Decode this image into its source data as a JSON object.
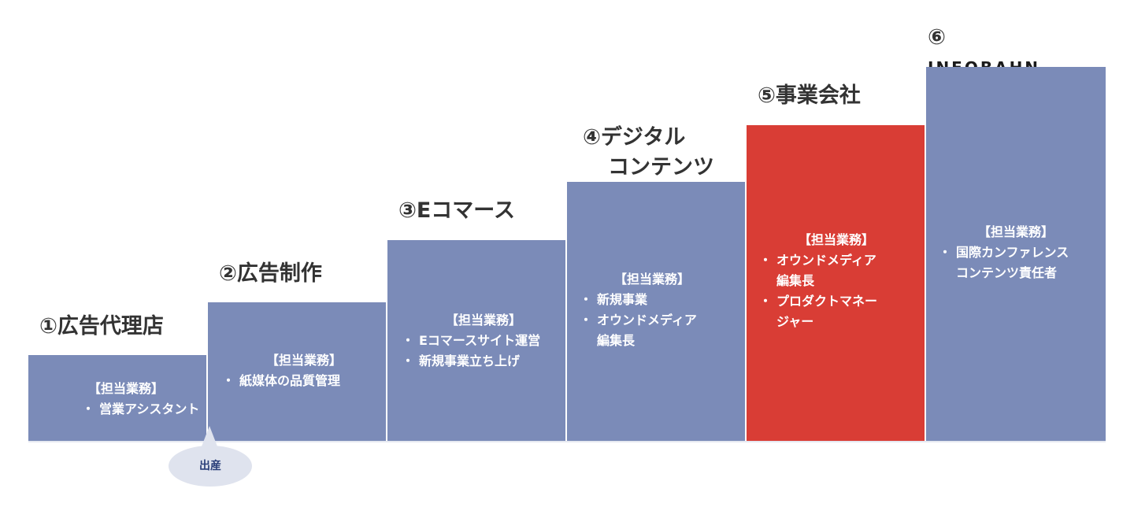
{
  "steps": [
    {
      "title_lines": [
        "①広告代理店"
      ],
      "heading": "【担当業務】",
      "tasks": [
        "営業アシスタント"
      ]
    },
    {
      "title_lines": [
        "②広告制作"
      ],
      "heading": "【担当業務】",
      "tasks": [
        "紙媒体の品質管理"
      ]
    },
    {
      "title_lines": [
        "③Eコマース"
      ],
      "heading": "【担当業務】",
      "tasks": [
        "Eコマースサイト運営",
        "新規事業立ち上げ"
      ]
    },
    {
      "title_lines": [
        "④デジタル",
        "コンテンツ"
      ],
      "heading": "【担当業務】",
      "tasks": [
        "新規事業",
        "オウンドメディア\n編集長"
      ]
    },
    {
      "title_lines": [
        "⑤事業会社"
      ],
      "heading": "【担当業務】",
      "tasks": [
        "オウンドメディア\n編集長",
        "プロダクトマネー\nジャー"
      ]
    },
    {
      "title_num": "⑥",
      "title_logo": "INFOBAHN",
      "heading": "【担当業務】",
      "tasks": [
        "国際カンファレンス\nコンテンツ責任者"
      ]
    }
  ],
  "bubble": {
    "label": "出産"
  },
  "colors": {
    "box": "#7b8bb8",
    "highlight": "#d93d35",
    "bubble": "#dfe3ee",
    "bubble_text": "#2b3f7a"
  }
}
